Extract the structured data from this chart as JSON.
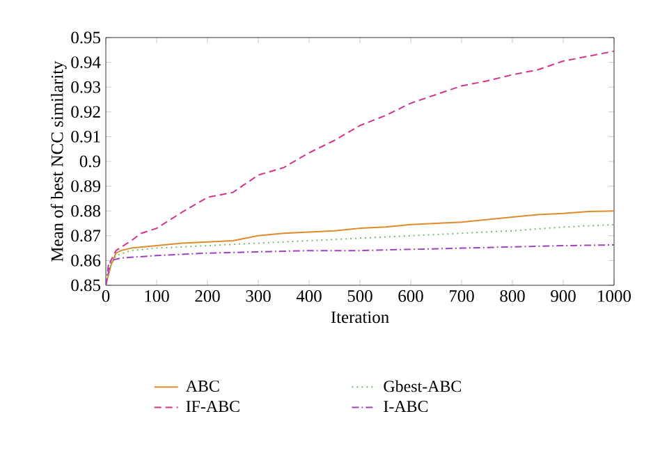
{
  "chart_data": {
    "type": "line",
    "xlabel": "Iteration",
    "ylabel": "Mean of best NCC similarity",
    "xlim": [
      0,
      1000
    ],
    "ylim": [
      0.85,
      0.95
    ],
    "xticks": [
      0,
      100,
      200,
      300,
      400,
      500,
      600,
      700,
      800,
      900,
      1000
    ],
    "yticks": [
      0.85,
      0.86,
      0.87,
      0.88,
      0.89,
      0.9,
      0.91,
      0.92,
      0.93,
      0.94,
      0.95
    ],
    "legend": "bottom",
    "grid": false,
    "marker": "none",
    "series": [
      {
        "name": "ABC",
        "color": "#e08a2c",
        "line_style": "solid",
        "x": [
          0,
          10,
          20,
          30,
          50,
          100,
          150,
          200,
          250,
          300,
          350,
          400,
          450,
          500,
          550,
          600,
          650,
          700,
          750,
          800,
          850,
          900,
          950,
          1000
        ],
        "values": [
          0.85,
          0.858,
          0.863,
          0.864,
          0.865,
          0.866,
          0.867,
          0.8675,
          0.868,
          0.87,
          0.871,
          0.8715,
          0.872,
          0.873,
          0.8735,
          0.8745,
          0.875,
          0.8755,
          0.8765,
          0.8775,
          0.8785,
          0.879,
          0.8798,
          0.88
        ]
      },
      {
        "name": "IF-ABC",
        "color": "#d6338a",
        "line_style": "dashed",
        "x": [
          0,
          10,
          20,
          50,
          70,
          100,
          150,
          200,
          250,
          300,
          350,
          400,
          450,
          500,
          550,
          600,
          650,
          700,
          750,
          800,
          850,
          900,
          950,
          1000
        ],
        "values": [
          0.85,
          0.86,
          0.864,
          0.868,
          0.871,
          0.873,
          0.8795,
          0.8855,
          0.8875,
          0.8945,
          0.8975,
          0.9035,
          0.9085,
          0.9145,
          0.9185,
          0.9235,
          0.927,
          0.9305,
          0.9325,
          0.935,
          0.937,
          0.9405,
          0.9425,
          0.9445
        ]
      },
      {
        "name": "Gbest-ABC",
        "color": "#6cc06c",
        "line_style": "dotted",
        "x": [
          0,
          10,
          20,
          50,
          100,
          200,
          300,
          400,
          500,
          600,
          700,
          800,
          900,
          1000
        ],
        "values": [
          0.85,
          0.858,
          0.862,
          0.864,
          0.865,
          0.866,
          0.867,
          0.868,
          0.869,
          0.87,
          0.871,
          0.872,
          0.8735,
          0.8745
        ]
      },
      {
        "name": "I-ABC",
        "color": "#a040c0",
        "line_style": "dashdot",
        "x": [
          0,
          5,
          10,
          30,
          100,
          200,
          300,
          400,
          500,
          600,
          700,
          800,
          900,
          1000
        ],
        "values": [
          0.85,
          0.858,
          0.86,
          0.861,
          0.862,
          0.863,
          0.8635,
          0.864,
          0.864,
          0.8645,
          0.865,
          0.8655,
          0.866,
          0.8663
        ]
      }
    ]
  }
}
